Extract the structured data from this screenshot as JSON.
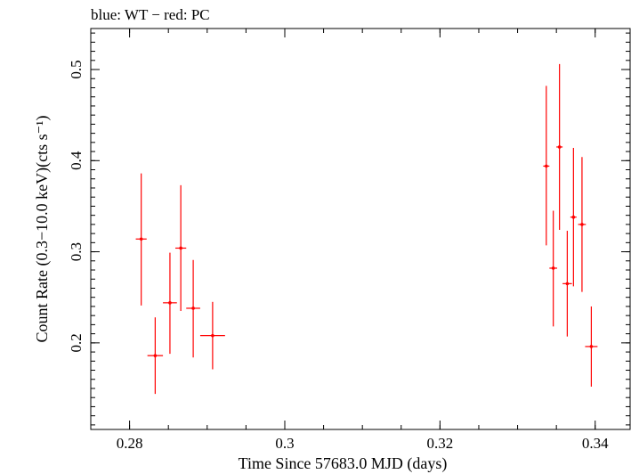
{
  "chart_data": {
    "type": "scatter",
    "title": "blue: WT − red: PC",
    "xlabel": "Time Since 57683.0 MJD (days)",
    "ylabel": "Count Rate (0.3−10.0 keV)(cts s⁻¹)",
    "xlim": [
      0.275,
      0.3445
    ],
    "ylim": [
      0.105,
      0.545
    ],
    "x_ticks": [
      0.28,
      0.3,
      0.32,
      0.34
    ],
    "x_tick_labels": [
      "0.28",
      "0.3",
      "0.32",
      "0.34"
    ],
    "y_ticks": [
      0.2,
      0.3,
      0.4,
      0.5
    ],
    "y_tick_labels": [
      "0.2",
      "0.3",
      "0.4",
      "0.5"
    ],
    "grid": false,
    "series": [
      {
        "color": "#ff0000",
        "points": [
          {
            "x": 0.2815,
            "y": 0.314,
            "xerr": 0.0007,
            "ylo": 0.241,
            "yhi": 0.386
          },
          {
            "x": 0.2833,
            "y": 0.186,
            "xerr": 0.001,
            "ylo": 0.144,
            "yhi": 0.228
          },
          {
            "x": 0.2852,
            "y": 0.244,
            "xerr": 0.0009,
            "ylo": 0.188,
            "yhi": 0.299
          },
          {
            "x": 0.2866,
            "y": 0.304,
            "xerr": 0.0007,
            "ylo": 0.235,
            "yhi": 0.373
          },
          {
            "x": 0.2882,
            "y": 0.238,
            "xerr": 0.0009,
            "ylo": 0.184,
            "yhi": 0.291
          },
          {
            "x": 0.2907,
            "y": 0.208,
            "xerr": 0.0016,
            "ylo": 0.171,
            "yhi": 0.245
          },
          {
            "x": 0.3337,
            "y": 0.394,
            "xerr": 0.0004,
            "ylo": 0.307,
            "yhi": 0.482
          },
          {
            "x": 0.3346,
            "y": 0.282,
            "xerr": 0.0005,
            "ylo": 0.218,
            "yhi": 0.345
          },
          {
            "x": 0.3354,
            "y": 0.415,
            "xerr": 0.0004,
            "ylo": 0.324,
            "yhi": 0.506
          },
          {
            "x": 0.3364,
            "y": 0.265,
            "xerr": 0.0006,
            "ylo": 0.207,
            "yhi": 0.323
          },
          {
            "x": 0.3372,
            "y": 0.338,
            "xerr": 0.0004,
            "ylo": 0.262,
            "yhi": 0.414
          },
          {
            "x": 0.3383,
            "y": 0.33,
            "xerr": 0.0005,
            "ylo": 0.256,
            "yhi": 0.404
          },
          {
            "x": 0.3395,
            "y": 0.196,
            "xerr": 0.0008,
            "ylo": 0.152,
            "yhi": 0.24
          }
        ]
      }
    ]
  }
}
